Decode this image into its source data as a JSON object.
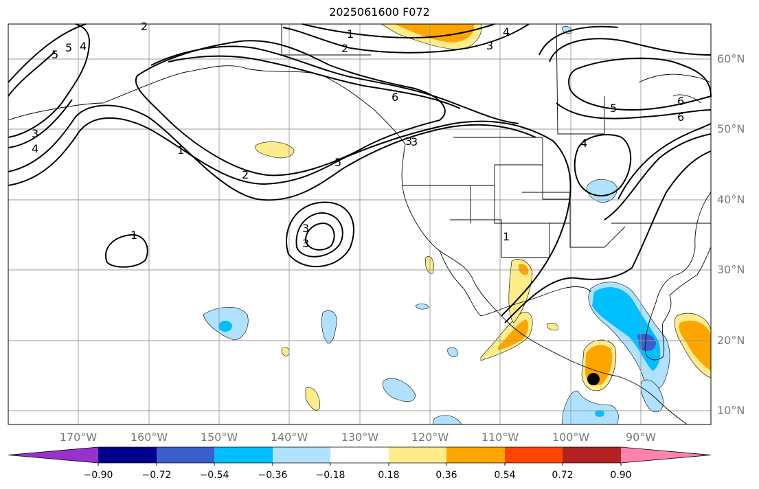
{
  "title": "2025061600 F072",
  "lat_labels": [
    "60°N",
    "50°N",
    "40°N",
    "30°N",
    "20°N",
    "10°N"
  ],
  "lon_labels": [
    "170°W",
    "160°W",
    "150°W",
    "140°W",
    "130°W",
    "120°W",
    "110°W",
    "100°W",
    "90°W"
  ],
  "colorbar": {
    "colors": [
      "#9932cc",
      "#00008b",
      "#3a5fcd",
      "#00bfff",
      "#b0e2ff",
      "#ffffff",
      "#ffec8b",
      "#ffa500",
      "#ff4500",
      "#b22222",
      "#ff82ab"
    ],
    "tick_labels": [
      "−0.90",
      "−0.72",
      "−0.54",
      "−0.36",
      "−0.18",
      "0.18",
      "0.36",
      "0.54",
      "0.72",
      "0.90"
    ]
  },
  "contour_labels": [
    "1",
    "2",
    "3",
    "4",
    "5",
    "6",
    "1",
    "2",
    "3",
    "4",
    "5",
    "6",
    "3",
    "4",
    "5",
    "1",
    "1",
    "2",
    "3",
    "5",
    "6",
    "4",
    "3",
    "3"
  ],
  "storm_marker": "tropical-cyclone-position"
}
